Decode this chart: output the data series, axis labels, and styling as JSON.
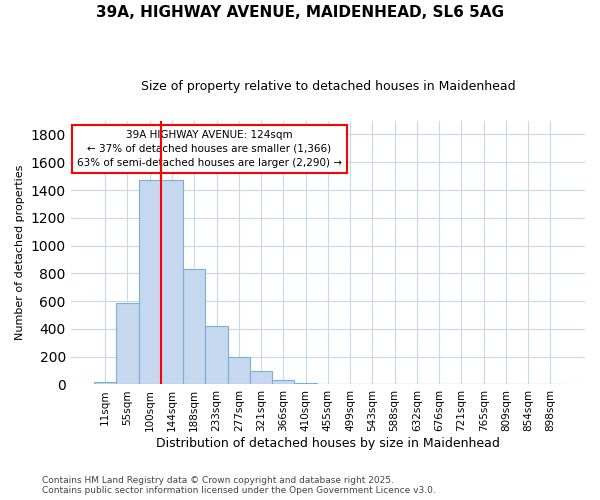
{
  "title_line1": "39A, HIGHWAY AVENUE, MAIDENHEAD, SL6 5AG",
  "title_line2": "Size of property relative to detached houses in Maidenhead",
  "xlabel": "Distribution of detached houses by size in Maidenhead",
  "ylabel": "Number of detached properties",
  "categories": [
    "11sqm",
    "55sqm",
    "100sqm",
    "144sqm",
    "188sqm",
    "233sqm",
    "277sqm",
    "321sqm",
    "366sqm",
    "410sqm",
    "455sqm",
    "499sqm",
    "543sqm",
    "588sqm",
    "632sqm",
    "676sqm",
    "721sqm",
    "765sqm",
    "809sqm",
    "854sqm",
    "898sqm"
  ],
  "values": [
    20,
    585,
    1470,
    1470,
    830,
    420,
    200,
    100,
    35,
    10,
    5,
    5,
    3,
    3,
    2,
    2,
    2,
    2,
    2,
    2,
    2
  ],
  "bar_color": "#c5d8f0",
  "bar_edge_color": "#7bafd4",
  "vline_color": "red",
  "vline_x_index": 2.5,
  "annotation_text": "39A HIGHWAY AVENUE: 124sqm\n← 37% of detached houses are smaller (1,366)\n63% of semi-detached houses are larger (2,290) →",
  "annotation_box_color": "white",
  "annotation_box_edge_color": "red",
  "ylim": [
    0,
    1900
  ],
  "yticks": [
    0,
    200,
    400,
    600,
    800,
    1000,
    1200,
    1400,
    1600,
    1800
  ],
  "footnote": "Contains HM Land Registry data © Crown copyright and database right 2025.\nContains public sector information licensed under the Open Government Licence v3.0.",
  "bg_color": "#ffffff",
  "plot_bg_color": "#ffffff",
  "grid_color": "#c8d8e8",
  "title1_fontsize": 11,
  "title2_fontsize": 9,
  "xlabel_fontsize": 9,
  "ylabel_fontsize": 8,
  "tick_fontsize": 7.5,
  "footnote_fontsize": 6.5
}
